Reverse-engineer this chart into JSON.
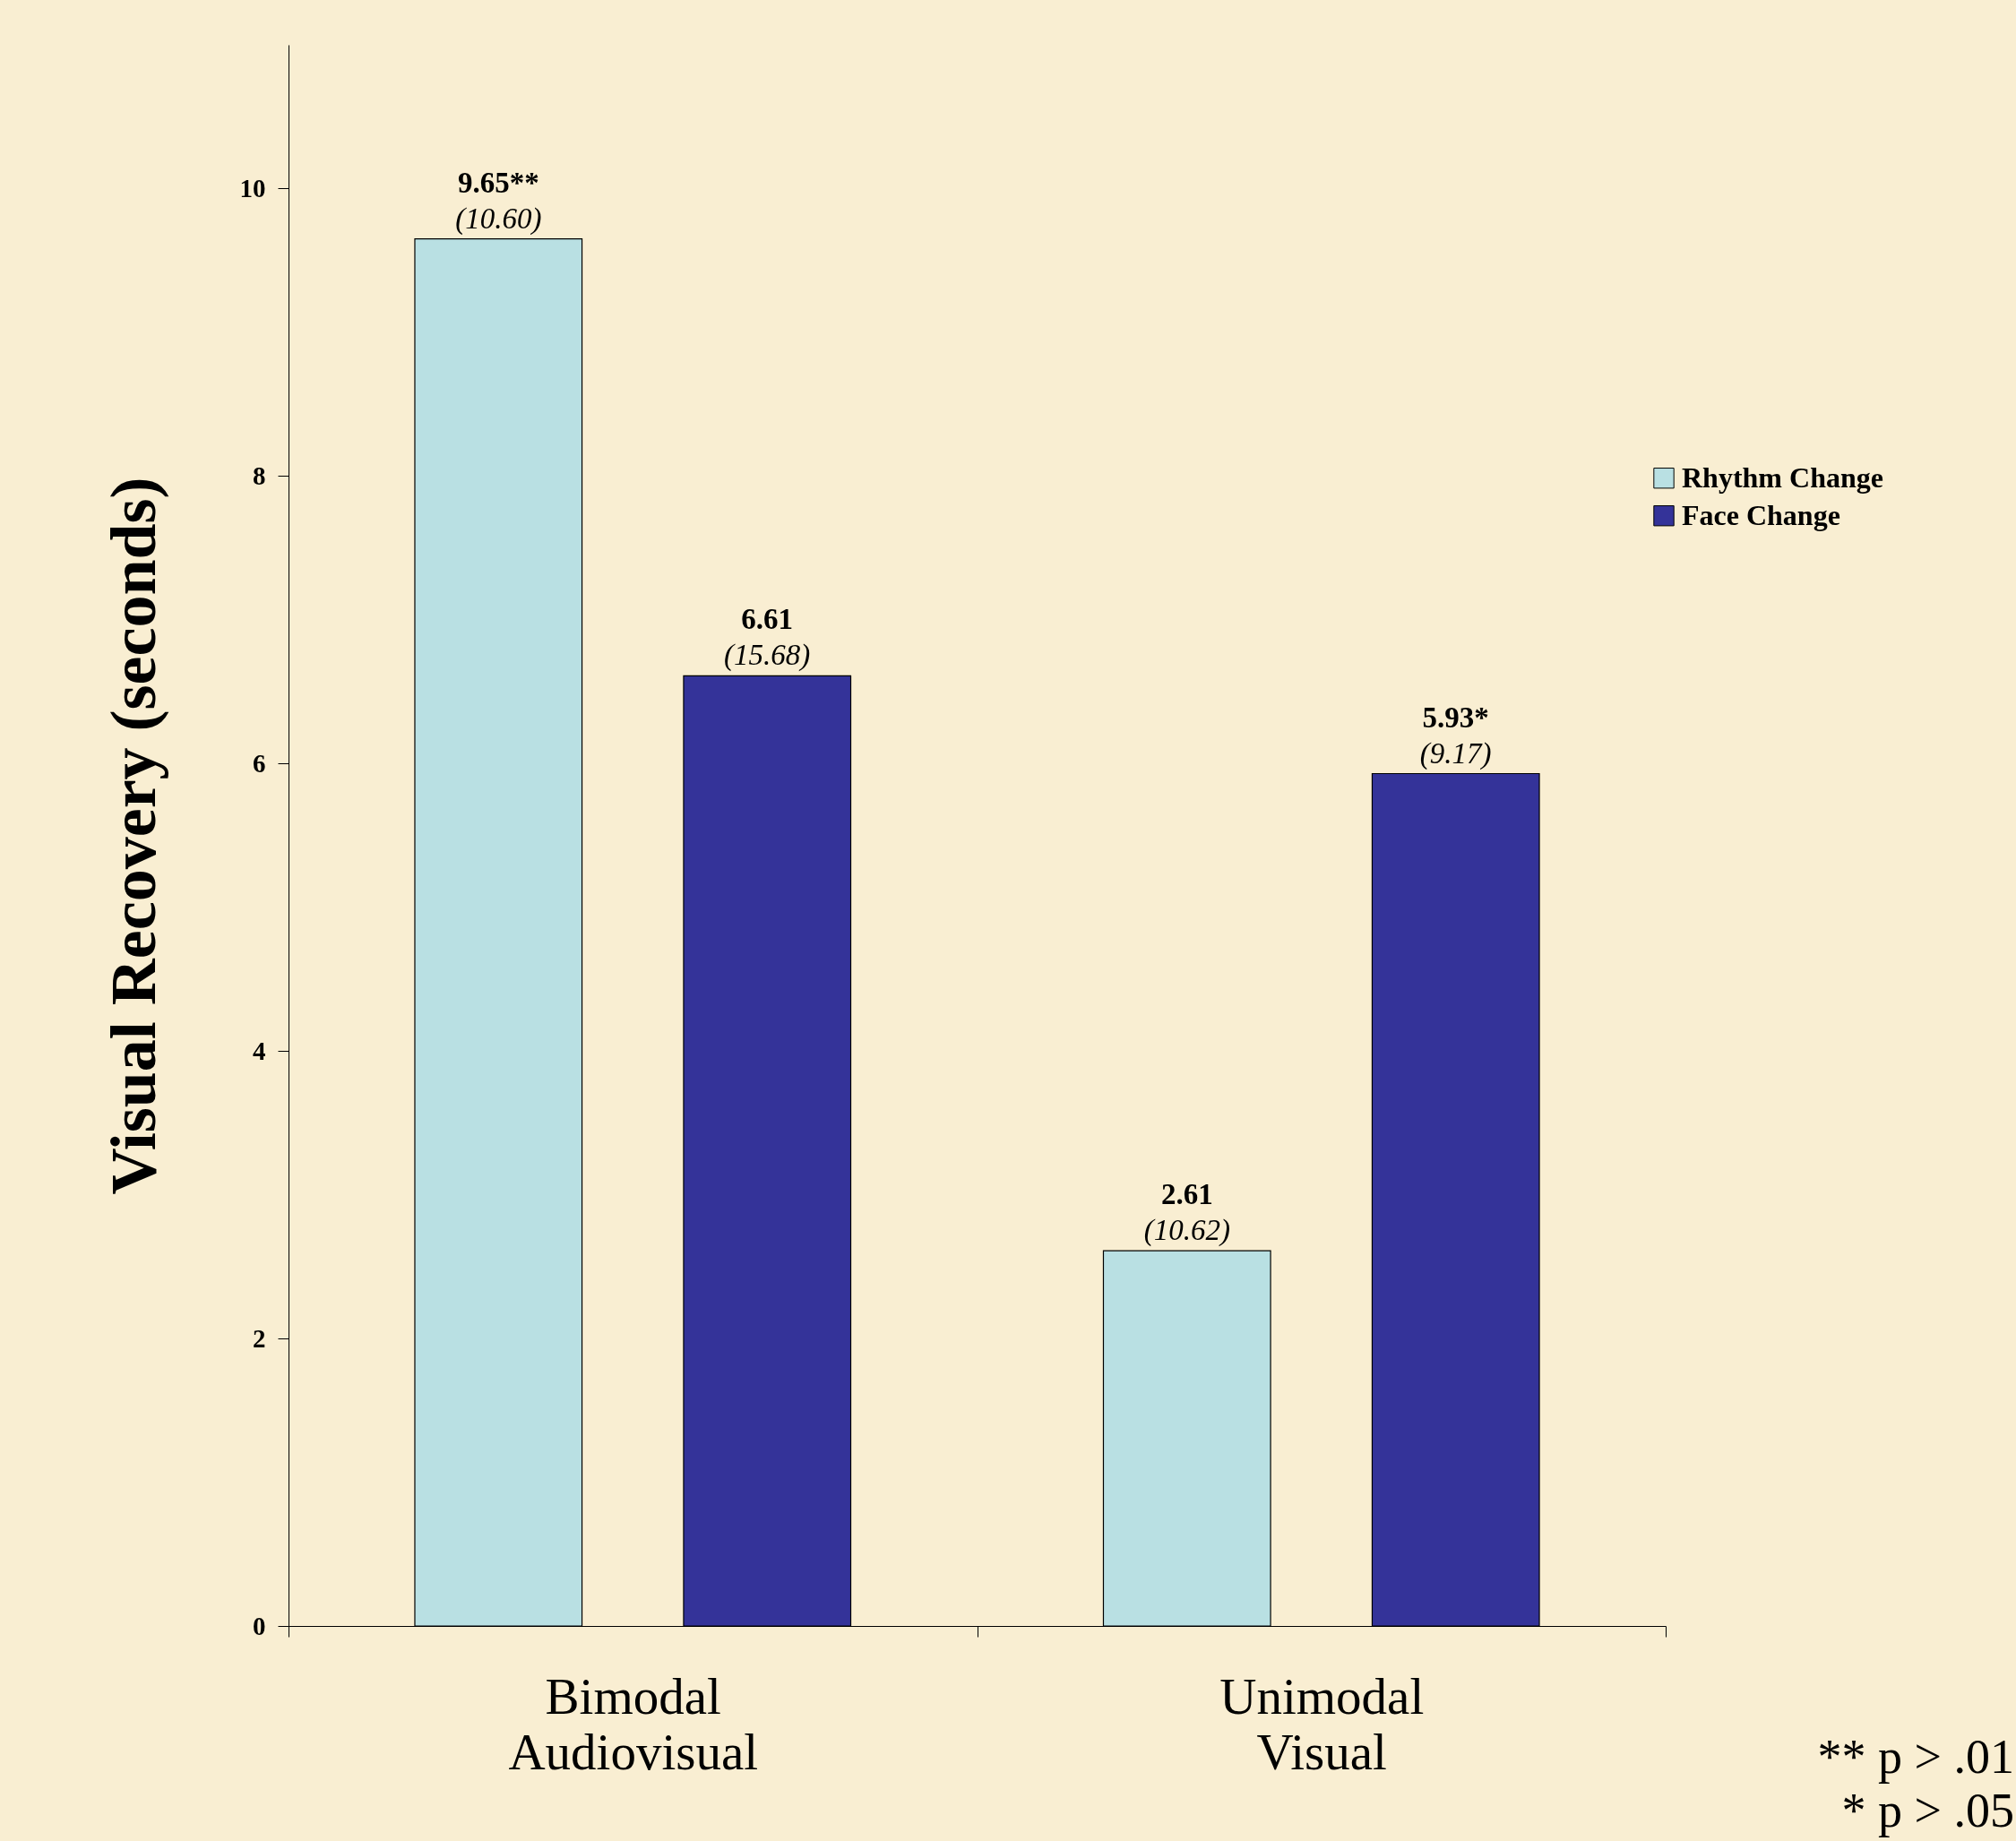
{
  "chart_data": {
    "type": "bar",
    "ylabel": "Visual Recovery (seconds)",
    "categories": [
      "Bimodal Audiovisual",
      "Unimodal Visual"
    ],
    "series": [
      {
        "name": "Rhythm Change",
        "color": "#b9e0e3",
        "values": [
          9.65,
          2.61
        ],
        "value_labels": [
          "9.65**\n(10.60)",
          "2.61\n(10.62)"
        ]
      },
      {
        "name": "Face Change",
        "color": "#343399",
        "values": [
          6.61,
          5.93
        ],
        "value_labels": [
          "6.61\n(15.68)",
          "5.93*\n(9.17)"
        ]
      }
    ],
    "ylim": [
      0,
      11
    ],
    "yticks": [
      0,
      2,
      4,
      6,
      8,
      10
    ],
    "legend": "right",
    "annotations": [
      "** p > .01",
      "* p > .05"
    ]
  }
}
